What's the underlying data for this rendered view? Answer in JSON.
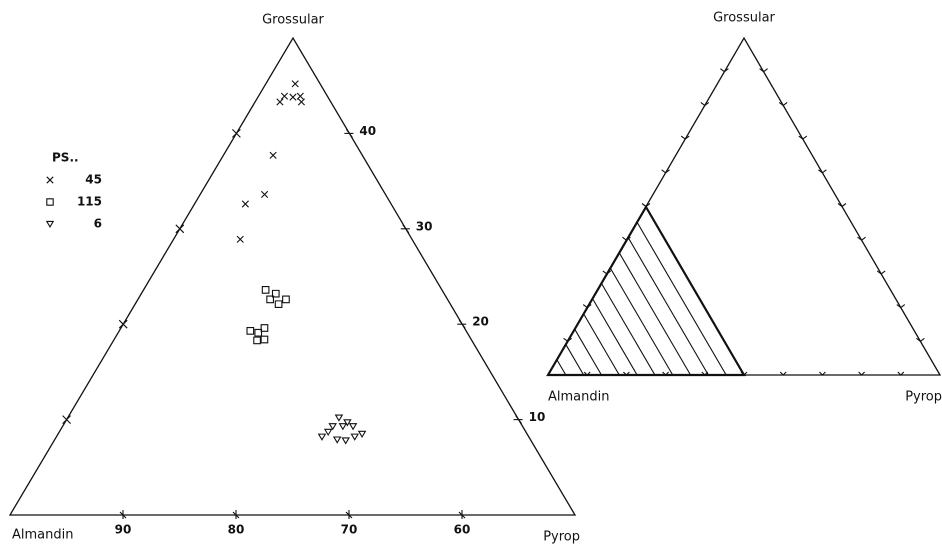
{
  "chart_data": [
    {
      "type": "ternary",
      "vertices": {
        "top": "Grossular",
        "left": "Almandin",
        "right": "Pyrop"
      },
      "grossular_lim": [
        0,
        50
      ],
      "pyrop_lim": [
        0,
        50
      ],
      "almandin_lim": [
        100,
        50
      ],
      "almandin_ticks": [
        90,
        80,
        70,
        60
      ],
      "grossular_ticks": [
        10,
        20,
        30,
        40
      ],
      "legend_title": "PS..",
      "series": [
        {
          "name": "45",
          "marker": "x",
          "color": "#111111",
          "grossular": [
            45.2,
            43.9,
            43.3,
            43.8,
            43.9,
            43.3,
            37.7,
            33.6,
            32.6,
            28.9
          ],
          "pyrop": [
            2.6,
            2.3,
            2.2,
            3.1,
            3.7,
            4.1,
            4.4,
            5.7,
            4.5,
            5.9
          ]
        },
        {
          "name": "115",
          "marker": "square",
          "color": "#111111",
          "grossular": [
            23.6,
            23.2,
            22.6,
            22.6,
            22.1,
            19.3,
            19.1,
            19.6,
            18.3,
            18.4
          ],
          "pyrop": [
            10.8,
            11.9,
            11.7,
            13.1,
            12.7,
            11.6,
            12.4,
            12.7,
            12.7,
            13.3
          ]
        },
        {
          "name": "6",
          "marker": "triangle-down",
          "color": "#111111",
          "grossular": [
            10.2,
            9.7,
            9.3,
            9.3,
            9.3,
            8.2,
            7.9,
            7.8,
            8.2,
            8.5,
            8.7
          ],
          "pyrop": [
            24.0,
            25.0,
            23.9,
            24.8,
            25.7,
            23.5,
            25.0,
            25.8,
            26.4,
            26.9,
            23.8
          ]
        }
      ]
    },
    {
      "type": "ternary-schematic",
      "vertices": {
        "top": "Grossular",
        "left": "Almandin",
        "right": "Pyrop"
      }
    }
  ]
}
